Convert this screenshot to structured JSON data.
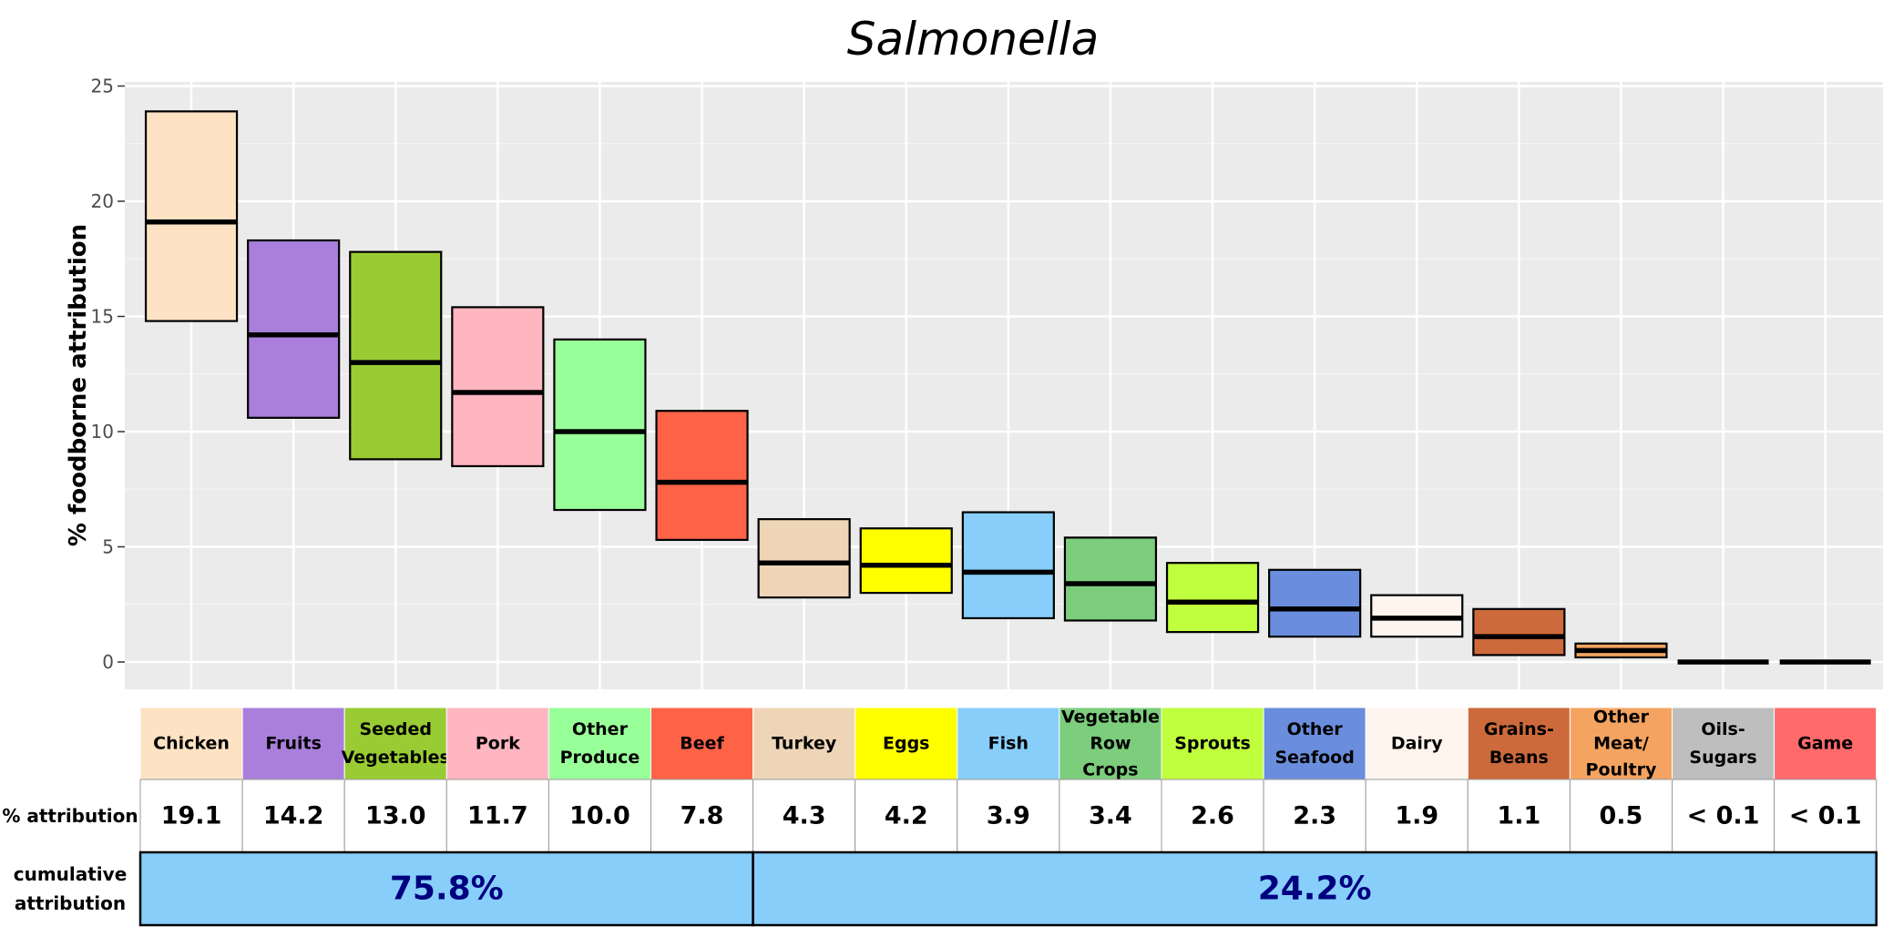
{
  "chart_data": {
    "type": "box",
    "title": "Salmonella",
    "ylabel": "% foodborne attribution",
    "ylim": [
      -1,
      25
    ],
    "yticks": [
      0,
      5,
      10,
      15,
      20,
      25
    ],
    "grid": true,
    "categories": [
      {
        "label": "Chicken",
        "color": "#FDE3C3",
        "low": 14.8,
        "median": 19.1,
        "high": 23.9,
        "attribution": "19.1"
      },
      {
        "label": "Fruits",
        "color": "#A97FDB",
        "low": 10.6,
        "median": 14.2,
        "high": 18.3,
        "attribution": "14.2"
      },
      {
        "label": "Seeded\nVegetables",
        "color": "#99CC33",
        "low": 8.8,
        "median": 13.0,
        "high": 17.8,
        "attribution": "13.0"
      },
      {
        "label": "Pork",
        "color": "#FFB6C1",
        "low": 8.5,
        "median": 11.7,
        "high": 15.4,
        "attribution": "11.7"
      },
      {
        "label": "Other\nProduce",
        "color": "#99FF99",
        "low": 6.6,
        "median": 10.0,
        "high": 14.0,
        "attribution": "10.0"
      },
      {
        "label": "Beef",
        "color": "#FF6347",
        "low": 5.3,
        "median": 7.8,
        "high": 10.9,
        "attribution": "7.8"
      },
      {
        "label": "Turkey",
        "color": "#EED5B7",
        "low": 2.8,
        "median": 4.3,
        "high": 6.2,
        "attribution": "4.3"
      },
      {
        "label": "Eggs",
        "color": "#FFFF00",
        "low": 3.0,
        "median": 4.2,
        "high": 5.8,
        "attribution": "4.2"
      },
      {
        "label": "Fish",
        "color": "#87CEFA",
        "low": 1.9,
        "median": 3.9,
        "high": 6.5,
        "attribution": "3.9"
      },
      {
        "label": "Vegetable\nRow\nCrops",
        "color": "#7CCD7C",
        "low": 1.8,
        "median": 3.4,
        "high": 5.4,
        "attribution": "3.4"
      },
      {
        "label": "Sprouts",
        "color": "#C0FF3E",
        "low": 1.3,
        "median": 2.6,
        "high": 4.3,
        "attribution": "2.6"
      },
      {
        "label": "Other\nSeafood",
        "color": "#6A8EDD",
        "low": 1.1,
        "median": 2.3,
        "high": 4.0,
        "attribution": "2.3"
      },
      {
        "label": "Dairy",
        "color": "#FFF5EE",
        "low": 1.1,
        "median": 1.9,
        "high": 2.9,
        "attribution": "1.9"
      },
      {
        "label": "Grains-\nBeans",
        "color": "#CD6A3C",
        "low": 0.3,
        "median": 1.1,
        "high": 2.3,
        "attribution": "1.1"
      },
      {
        "label": "Other\nMeat/\nPoultry",
        "color": "#F4A460",
        "low": 0.2,
        "median": 0.5,
        "high": 0.8,
        "attribution": "0.5"
      },
      {
        "label": "Oils-\nSugars",
        "color": "#BEBEBE",
        "low": 0.0,
        "median": 0.0,
        "high": 0.05,
        "attribution": "< 0.1"
      },
      {
        "label": "Game",
        "color": "#FF6A6A",
        "low": 0.0,
        "median": 0.0,
        "high": 0.05,
        "attribution": "< 0.1"
      }
    ],
    "table": {
      "attribution_row_label": "% attribution",
      "cumulative_row_label": "cumulative\nattribution",
      "cumulative_groups": [
        {
          "value": "75.8%",
          "from": 0,
          "to": 5
        },
        {
          "value": "24.2%",
          "from": 6,
          "to": 16
        }
      ],
      "cumulative_fill": "#87CEFA",
      "cumulative_text_color": "#000080"
    }
  }
}
